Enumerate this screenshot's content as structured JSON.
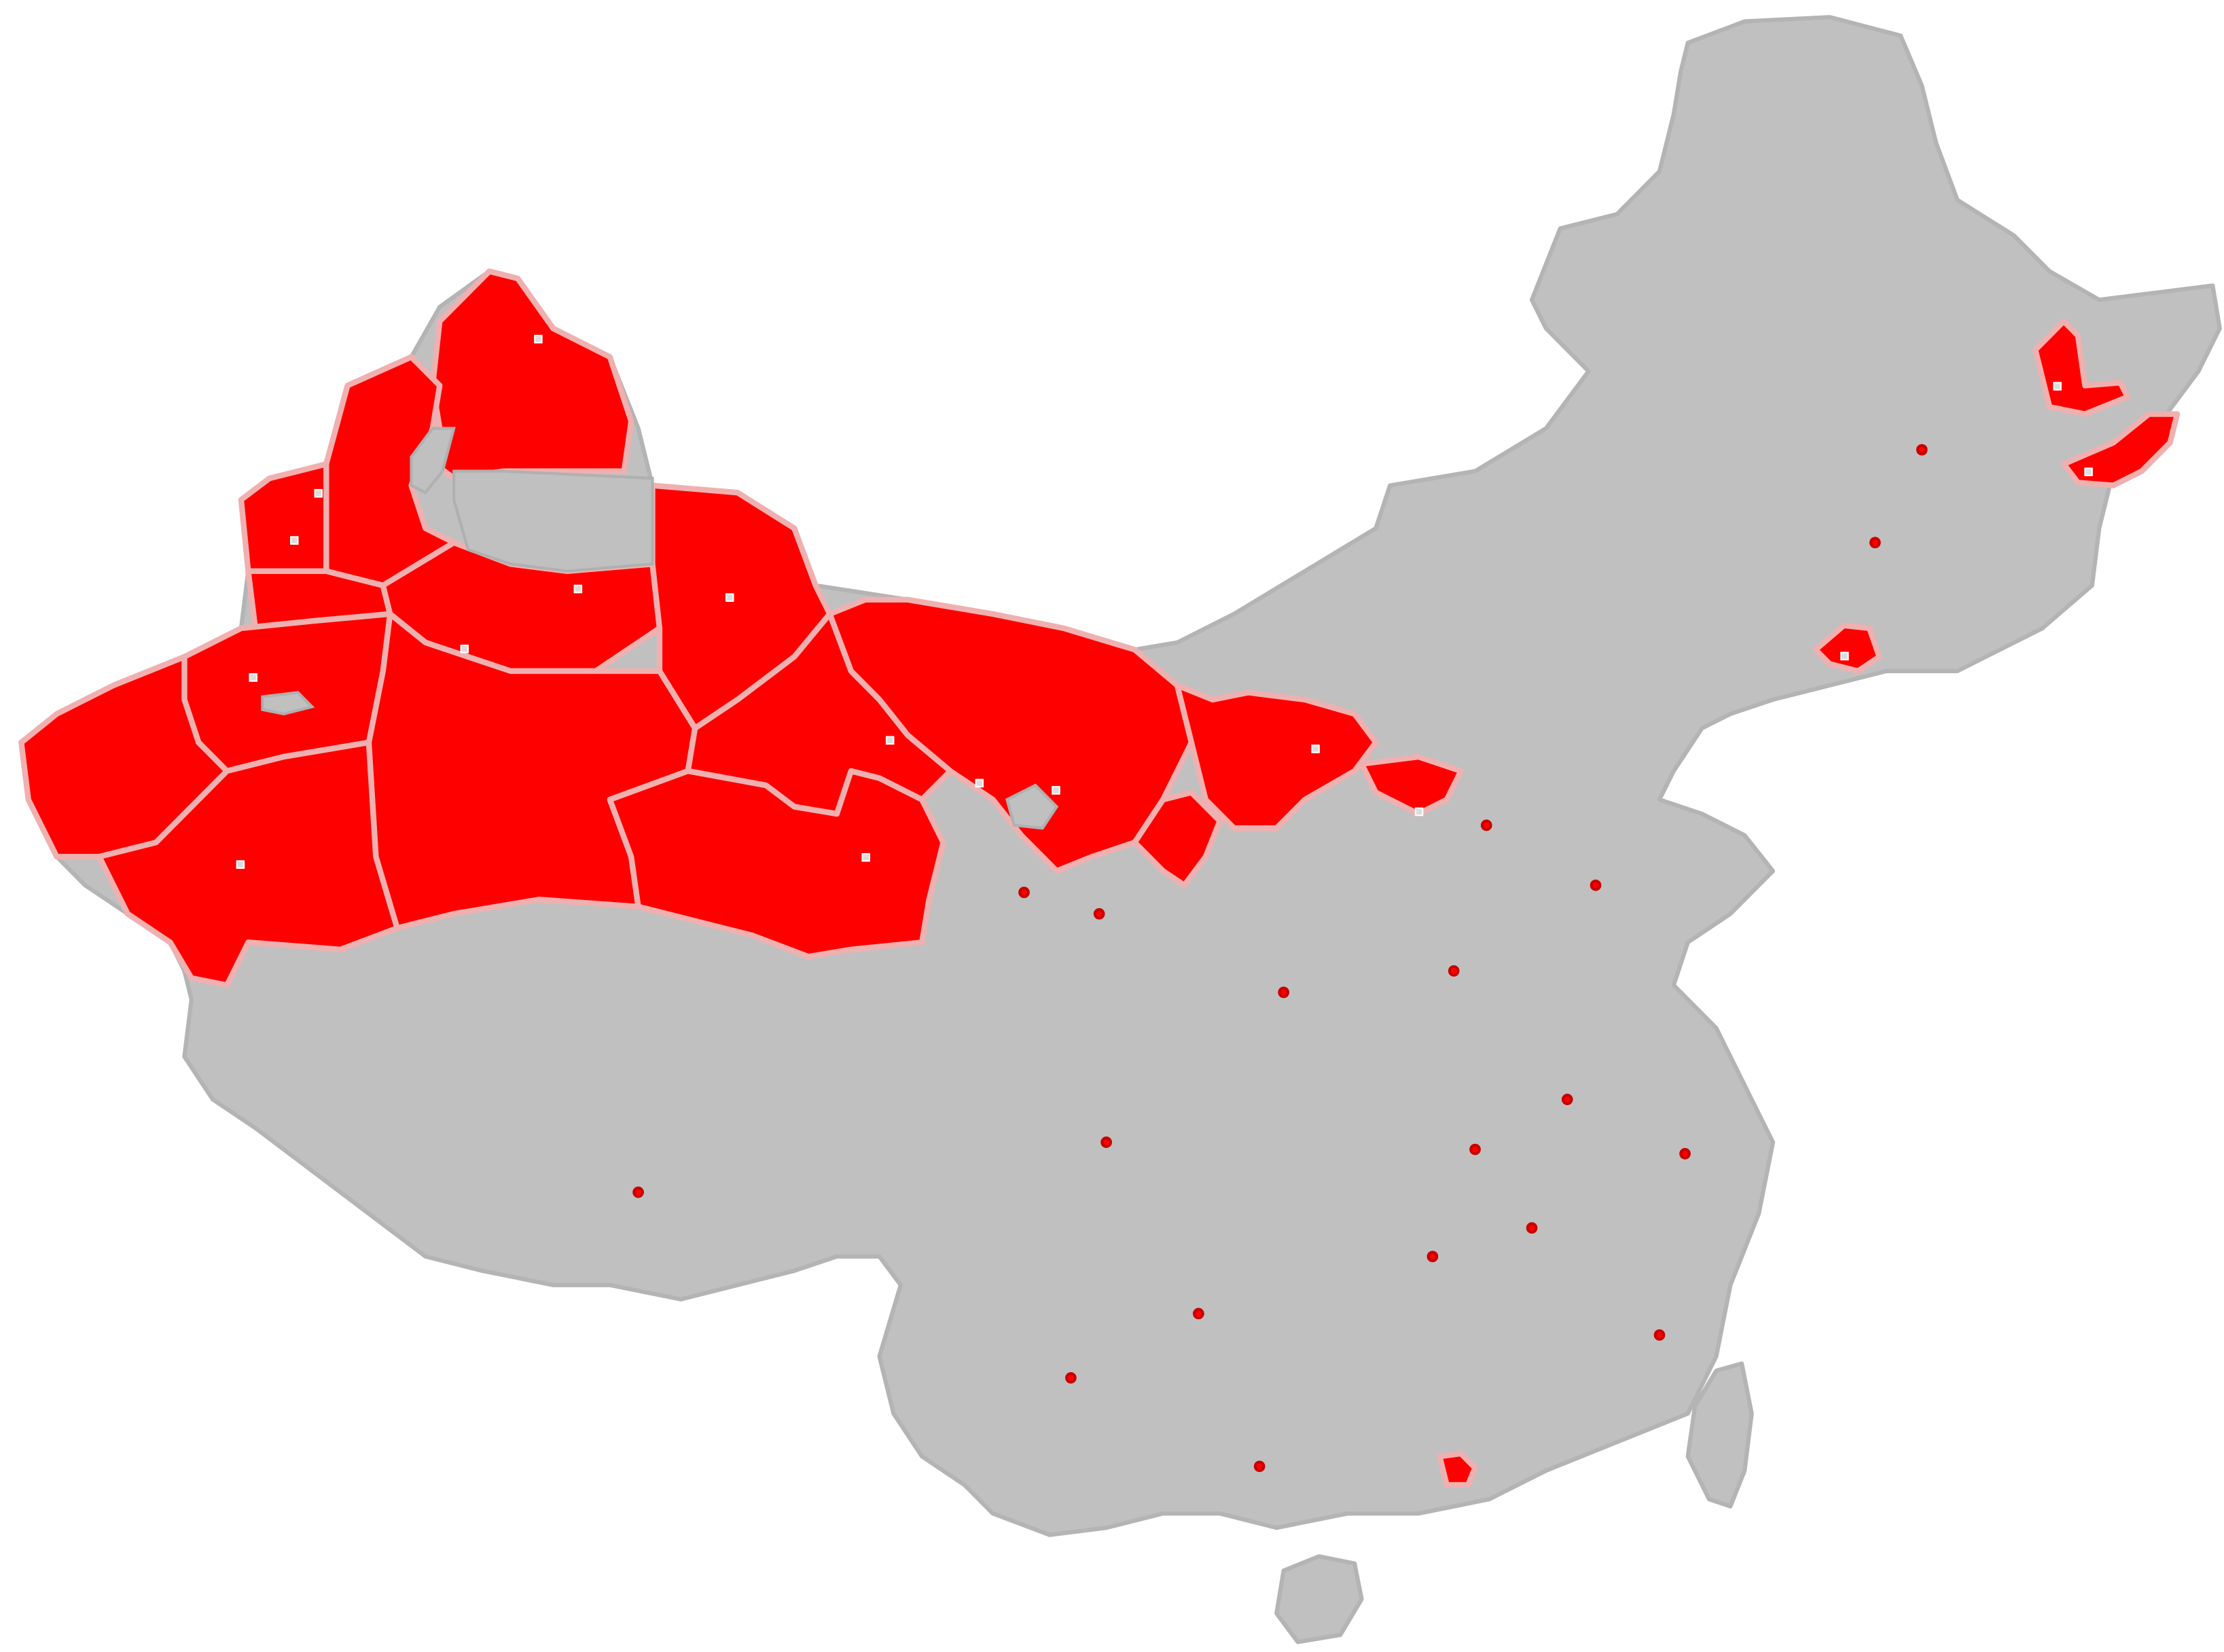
{
  "map": {
    "colors": {
      "background": "#ffffff",
      "land": "#c0c0c0",
      "highlight": "#ff0000",
      "region_border": "#f0b0b0"
    },
    "highlighted_regions": [
      "altay",
      "tacheng",
      "bortala",
      "ili",
      "changji",
      "bayingolin",
      "aksu",
      "kashgar",
      "kizilsu",
      "hotan",
      "hami",
      "alxa",
      "bayannur",
      "ordos",
      "baotou",
      "wuhai",
      "yinchuan",
      "jiuquan",
      "jiayuguan",
      "zhangye",
      "wuwei",
      "hulunbuir-east",
      "jiamusi",
      "jixi",
      "changchun"
    ],
    "labels": []
  }
}
